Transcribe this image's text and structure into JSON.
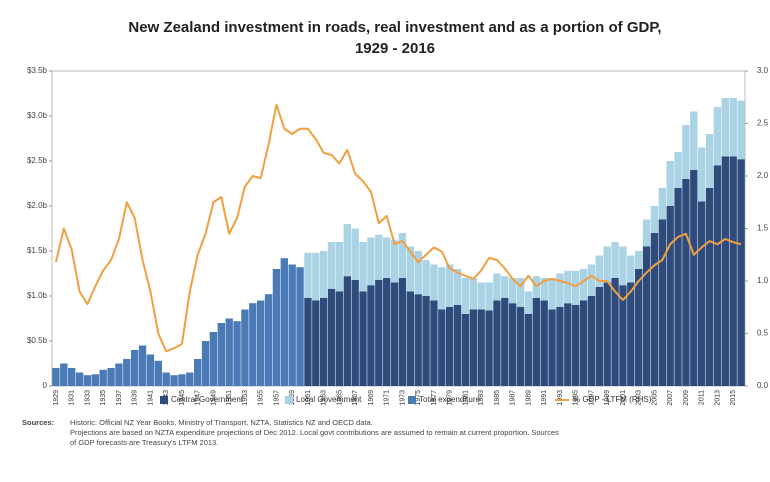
{
  "chart_data": {
    "type": "bar",
    "title": [
      "New Zealand investment in roads, real investment and as a portion of GDP,",
      "1929 - 2016"
    ],
    "categories": [
      "1929",
      null,
      "1931",
      null,
      "1933",
      null,
      "1935",
      null,
      "1937",
      null,
      "1939",
      null,
      "1941",
      null,
      "1943",
      null,
      "1945",
      null,
      "1947",
      null,
      "1949",
      null,
      "1951",
      null,
      "1953",
      null,
      "1955",
      null,
      "1957",
      null,
      "1959",
      null,
      "1961",
      null,
      "1963",
      null,
      "1965",
      null,
      "1967",
      null,
      "1969",
      null,
      "1971",
      null,
      "1973",
      null,
      "1975",
      null,
      "1977",
      null,
      "1979",
      null,
      "1981",
      null,
      "1983",
      null,
      "1985",
      null,
      "1987",
      null,
      "1989",
      null,
      "1991",
      null,
      "1993",
      null,
      "1995",
      null,
      "1997",
      null,
      "1999",
      null,
      "2001",
      null,
      "2003",
      null,
      "2005",
      null,
      "2007",
      null,
      "2009",
      null,
      "2011",
      null,
      "2013",
      null,
      "2015",
      null
    ],
    "series": [
      {
        "name": "Central Government",
        "color": "#2f4b7c",
        "values": [
          null,
          null,
          null,
          null,
          null,
          null,
          null,
          null,
          null,
          null,
          null,
          null,
          null,
          null,
          null,
          null,
          null,
          null,
          null,
          null,
          null,
          null,
          null,
          null,
          null,
          null,
          null,
          null,
          null,
          null,
          null,
          null,
          0.98,
          0.95,
          0.98,
          1.08,
          1.05,
          1.22,
          1.18,
          1.05,
          1.12,
          1.18,
          1.2,
          1.15,
          1.2,
          1.05,
          1.02,
          1.0,
          0.95,
          0.85,
          0.88,
          0.9,
          0.8,
          0.85,
          0.85,
          0.84,
          0.95,
          0.98,
          0.92,
          0.88,
          0.8,
          0.98,
          0.95,
          0.85,
          0.88,
          0.92,
          0.9,
          0.95,
          1.0,
          1.1,
          1.15,
          1.2,
          1.12,
          1.15,
          1.3,
          1.55,
          1.7,
          1.85,
          2.0,
          2.2,
          2.3,
          2.4,
          2.05,
          2.2,
          2.45,
          2.55,
          2.55,
          2.52
        ]
      },
      {
        "name": "Local Government",
        "color": "#aad3e6",
        "values": [
          null,
          null,
          null,
          null,
          null,
          null,
          null,
          null,
          null,
          null,
          null,
          null,
          null,
          null,
          null,
          null,
          null,
          null,
          null,
          null,
          null,
          null,
          null,
          null,
          null,
          null,
          null,
          null,
          null,
          null,
          null,
          null,
          0.5,
          0.53,
          0.52,
          0.52,
          0.55,
          0.58,
          0.57,
          0.55,
          0.53,
          0.5,
          0.45,
          0.47,
          0.5,
          0.5,
          0.48,
          0.4,
          0.4,
          0.47,
          0.47,
          0.4,
          0.4,
          0.35,
          0.3,
          0.31,
          0.3,
          0.24,
          0.28,
          0.32,
          0.25,
          0.24,
          0.25,
          0.35,
          0.37,
          0.36,
          0.38,
          0.35,
          0.35,
          0.35,
          0.4,
          0.4,
          0.43,
          0.3,
          0.2,
          0.3,
          0.3,
          0.35,
          0.5,
          0.4,
          0.6,
          0.65,
          0.6,
          0.6,
          0.65,
          0.65,
          0.65,
          0.65
        ]
      },
      {
        "name": "Total expenditure",
        "color": "#4a7bb7",
        "values": [
          0.2,
          0.25,
          0.2,
          0.15,
          0.12,
          0.13,
          0.18,
          0.2,
          0.25,
          0.3,
          0.4,
          0.45,
          0.35,
          0.28,
          0.15,
          0.12,
          0.13,
          0.15,
          0.3,
          0.5,
          0.6,
          0.7,
          0.75,
          0.72,
          0.85,
          0.92,
          0.95,
          1.02,
          1.3,
          1.42,
          1.35,
          1.32,
          null,
          null,
          null,
          null,
          null,
          null,
          null,
          null,
          null,
          null,
          null,
          null,
          null,
          null,
          null,
          null,
          null,
          null,
          null,
          null,
          null,
          null,
          null,
          null,
          null,
          null,
          null,
          null,
          null,
          null,
          null,
          null,
          null,
          null,
          null,
          null,
          null,
          null,
          null,
          null,
          null,
          null,
          null,
          null,
          null,
          null,
          null,
          null,
          null,
          null,
          null,
          null,
          null,
          null,
          null,
          null
        ]
      },
      {
        "name": "% GDP - LTFM (RHS)",
        "color": "#f0a040",
        "axis": "y2",
        "type": "line",
        "values": [
          1.18,
          1.5,
          1.3,
          0.9,
          0.78,
          0.95,
          1.1,
          1.2,
          1.4,
          1.75,
          1.6,
          1.2,
          0.9,
          0.5,
          0.33,
          0.36,
          0.4,
          0.9,
          1.25,
          1.45,
          1.75,
          1.8,
          1.45,
          1.6,
          1.9,
          2.0,
          1.98,
          2.3,
          2.68,
          2.45,
          2.4,
          2.45,
          2.45,
          2.35,
          2.22,
          2.2,
          2.12,
          2.25,
          2.02,
          1.95,
          1.85,
          1.55,
          1.62,
          1.35,
          1.38,
          1.28,
          1.18,
          1.25,
          1.32,
          1.28,
          1.12,
          1.08,
          1.05,
          1.02,
          1.1,
          1.22,
          1.2,
          1.12,
          1.02,
          0.95,
          1.05,
          0.95,
          1.0,
          1.02,
          1.0,
          0.98,
          0.95,
          1.0,
          1.05,
          1.0,
          1.0,
          0.9,
          0.82,
          0.9,
          1.0,
          1.08,
          1.15,
          1.2,
          1.35,
          1.42,
          1.45,
          1.25,
          1.32,
          1.38,
          1.35,
          1.4,
          1.37,
          1.35
        ]
      }
    ],
    "ylim": [
      0,
      3.5
    ],
    "yticks": [
      0,
      {
        "value": 0.5,
        "label": "$0.5b"
      },
      {
        "value": 1,
        "label": "$1.0b"
      },
      {
        "value": 1.5,
        "label": "$1.5b"
      },
      {
        "value": 2,
        "label": "$2.0b"
      },
      {
        "value": 2.5,
        "label": "$2.5b"
      },
      {
        "value": 3,
        "label": "$3.0b"
      },
      {
        "value": 3.5,
        "label": "$3.5b"
      }
    ],
    "y2lim": [
      0,
      3
    ],
    "y2ticks": [
      {
        "value": 0,
        "label": "0.0"
      },
      0.5,
      {
        "value": 1,
        "label": "1.0"
      },
      1.5,
      {
        "value": 2,
        "label": "2.0"
      },
      2.5,
      {
        "value": 3,
        "label": "3.0"
      }
    ],
    "sources_label": "Sources:",
    "sources": [
      "Historic: Official NZ Year Books, Ministry of Transport, NZTA, Statistics NZ and OECD data.",
      "Projections are based on NZTA expenditure projections of Dec 2012. Local govt contributions are assumed to remain at current proportion. Sources",
      "of GDP forecasts are Treasury's LTFM 2013."
    ]
  }
}
